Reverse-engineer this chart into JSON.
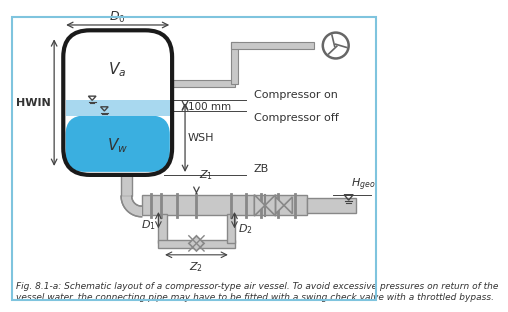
{
  "bg_color": "#ffffff",
  "border_color": "#7fc4de",
  "fig_width": 4.83,
  "fig_height": 3.77,
  "caption": "Fig. 8.1-a: Schematic layout of a compressor-type air vessel. To avoid excessive pressures on return of the\nvessel water, the connecting pipe may have to be fitted with a swing check valve with a throttled bypass.",
  "water_color": "#3aafe0",
  "water_light_color": "#a8d8ef",
  "tank_outline": "#1a1a1a",
  "pipe_fill": "#c8c8c8",
  "pipe_edge": "#888888",
  "pipe_dark": "#666666",
  "text_color": "#333333",
  "dim_color": "#444444",
  "label_orange": "#cc6600",
  "compressor_line": "#999999"
}
